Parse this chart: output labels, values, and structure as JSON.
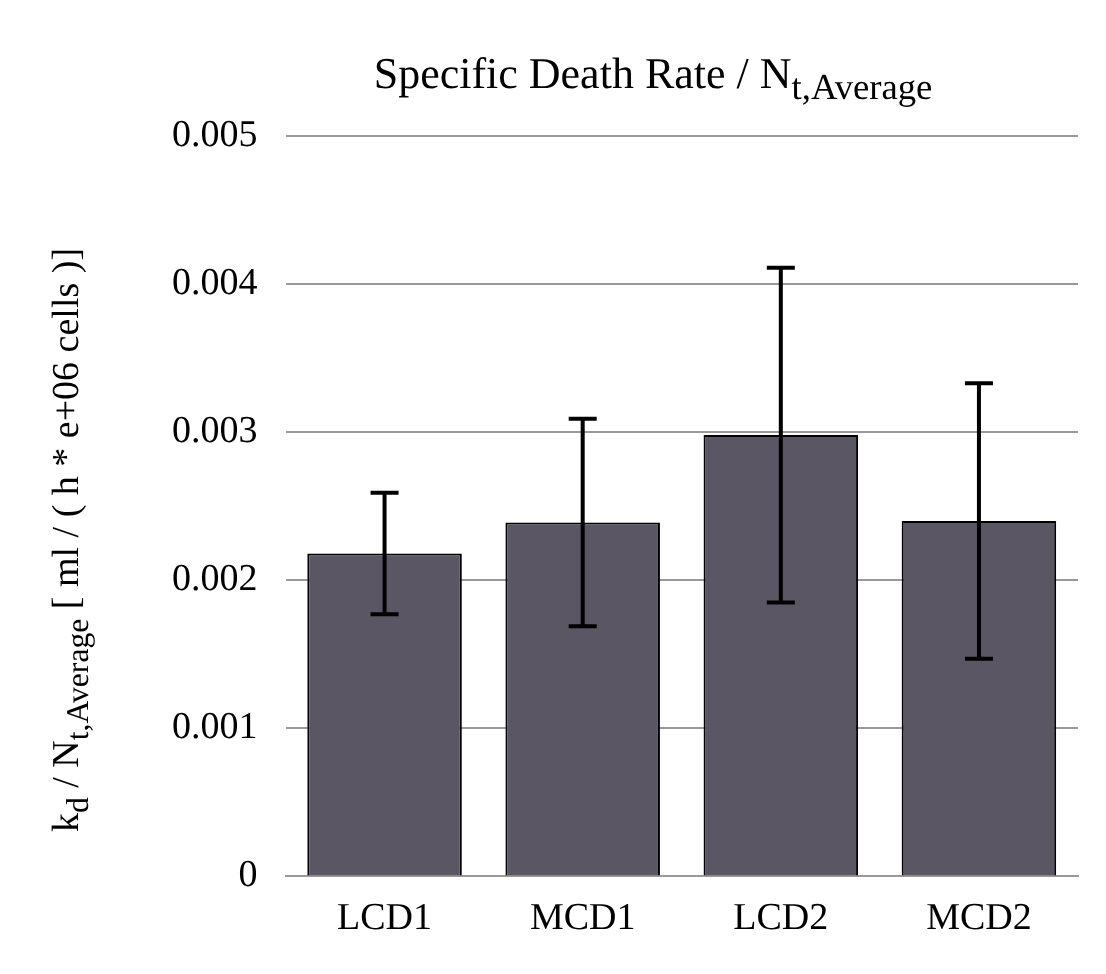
{
  "chart_data": {
    "type": "bar",
    "title": "Specific Death Rate / N$_{t,Average}$",
    "ylabel": "k$_{d}$ / N$_{t,Average}$ [ ml / ( h * e+06 cells )]",
    "categories": [
      "LCD1",
      "MCD1",
      "LCD2",
      "MCD2"
    ],
    "values": [
      0.00218,
      0.00239,
      0.00298,
      0.0024
    ],
    "errors": [
      0.00041,
      0.0007,
      0.00113,
      0.00093
    ],
    "color": "#5a5664",
    "ylim": [
      0,
      0.005
    ],
    "yticks": [
      0,
      0.001,
      0.002,
      0.003,
      0.004,
      0.005
    ],
    "grid": "y"
  }
}
